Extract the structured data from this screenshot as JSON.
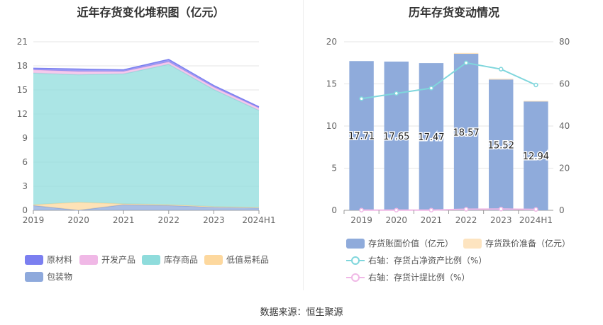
{
  "left_chart": {
    "title": "近年存货变化堆积图（亿元）",
    "legend": [
      {
        "name": "原材料",
        "color": "#7b7ff0"
      },
      {
        "name": "开发产品",
        "color": "#f0b8e6"
      },
      {
        "name": "库存商品",
        "color": "#8fdcdc"
      },
      {
        "name": "低值易耗品",
        "color": "#fdd89e"
      },
      {
        "name": "包装物",
        "color": "#8ea9dc"
      }
    ]
  },
  "right_chart": {
    "title": "历年存货变动情况",
    "legend": [
      {
        "name": "存货账面价值（亿元）",
        "color": "#8fabdb",
        "kind": "bar"
      },
      {
        "name": "存货跌价准备（亿元）",
        "color": "#fde4c0",
        "kind": "bar"
      },
      {
        "name": "右轴：存货占净资产比例（%）",
        "color": "#7fd6dc",
        "kind": "line"
      },
      {
        "name": "右轴：存货计提比例（%）",
        "color": "#f0b8e6",
        "kind": "line"
      }
    ]
  },
  "source": "数据来源：恒生聚源",
  "chart_data": [
    {
      "type": "area",
      "stacked": true,
      "title": "近年存货变化堆积图（亿元）",
      "categories": [
        "2019",
        "2020",
        "2021",
        "2022",
        "2023",
        "2024H1"
      ],
      "ylim": [
        0,
        21
      ],
      "yticks": [
        0,
        3,
        6,
        9,
        12,
        15,
        18,
        21
      ],
      "grid": true,
      "legend_position": "bottom",
      "series": [
        {
          "name": "包装物",
          "color": "#8ea9dc",
          "values": [
            0.6,
            0.0,
            0.7,
            0.6,
            0.4,
            0.3
          ]
        },
        {
          "name": "低值易耗品",
          "color": "#fdd89e",
          "values": [
            0.1,
            1.0,
            0.1,
            0.1,
            0.05,
            0.05
          ]
        },
        {
          "name": "库存商品",
          "color": "#8fdcdc",
          "values": [
            16.4,
            15.9,
            16.2,
            17.5,
            14.6,
            12.1
          ]
        },
        {
          "name": "开发产品",
          "color": "#f0b8e6",
          "values": [
            0.4,
            0.4,
            0.3,
            0.3,
            0.3,
            0.3
          ]
        },
        {
          "name": "原材料",
          "color": "#7b7ff0",
          "values": [
            0.2,
            0.3,
            0.2,
            0.3,
            0.2,
            0.15
          ]
        }
      ]
    },
    {
      "type": "bar",
      "stacked": true,
      "title": "历年存货变动情况",
      "categories": [
        "2019",
        "2020",
        "2021",
        "2022",
        "2023",
        "2024H1"
      ],
      "ylim": [
        0,
        20
      ],
      "yticks": [
        0,
        5,
        10,
        15,
        20
      ],
      "y2lim": [
        0,
        80
      ],
      "y2ticks": [
        0,
        20,
        40,
        60,
        80
      ],
      "grid": true,
      "legend_position": "bottom",
      "series": [
        {
          "name": "存货账面价值（亿元）",
          "kind": "bar",
          "axis": "left",
          "color": "#8fabdb",
          "values": [
            17.71,
            17.65,
            17.47,
            18.57,
            15.52,
            12.94
          ],
          "labels": [
            "17.71",
            "17.65",
            "17.47",
            "18.57",
            "15.52",
            "12.94"
          ]
        },
        {
          "name": "存货跌价准备（亿元）",
          "kind": "bar",
          "axis": "left",
          "color": "#fde4c0",
          "values": [
            0.0,
            0.0,
            0.0,
            0.1,
            0.1,
            0.05
          ]
        },
        {
          "name": "右轴：存货占净资产比例（%）",
          "kind": "line",
          "axis": "right",
          "color": "#7fd6dc",
          "values": [
            53.0,
            55.5,
            58.0,
            70.0,
            67.0,
            59.5
          ]
        },
        {
          "name": "右轴：存货计提比例（%）",
          "kind": "line",
          "axis": "right",
          "color": "#f0b8e6",
          "values": [
            0.1,
            0.1,
            0.1,
            0.5,
            0.6,
            0.4
          ]
        }
      ]
    }
  ]
}
